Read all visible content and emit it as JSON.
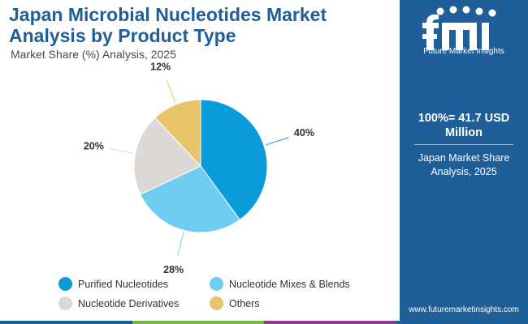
{
  "header": {
    "title": "Japan Microbial Nucleotides Market Analysis by Product Type",
    "subtitle": "Market Share (%) Analysis, 2025"
  },
  "chart_data": {
    "type": "pie",
    "title": "Japan Microbial Nucleotides Market Analysis by Product Type",
    "subtitle": "Market Share (%) Analysis, 2025",
    "categories": [
      "Purified Nucleotides",
      "Nucleotide Mixes & Blends",
      "Nucleotide Derivatives",
      "Others"
    ],
    "values": [
      40,
      28,
      20,
      12
    ],
    "labels": [
      "40%",
      "28%",
      "20%",
      "12%"
    ],
    "colors": [
      "#0a9bd9",
      "#6fcdf2",
      "#dcd8d5",
      "#e8c46a"
    ],
    "legend_position": "bottom"
  },
  "sidebar": {
    "brand": "Future Market Insights",
    "total_line": "100%= 41.7 USD Million",
    "caption": "Japan Market Share Analysis, 2025",
    "website": "www.futuremarketinsights.com",
    "logo_icon": "fmi-logo-icon"
  },
  "footer_bar_colors": [
    "#1f5f99",
    "#7ab648",
    "#8a3d8f",
    "#1f5f99"
  ]
}
